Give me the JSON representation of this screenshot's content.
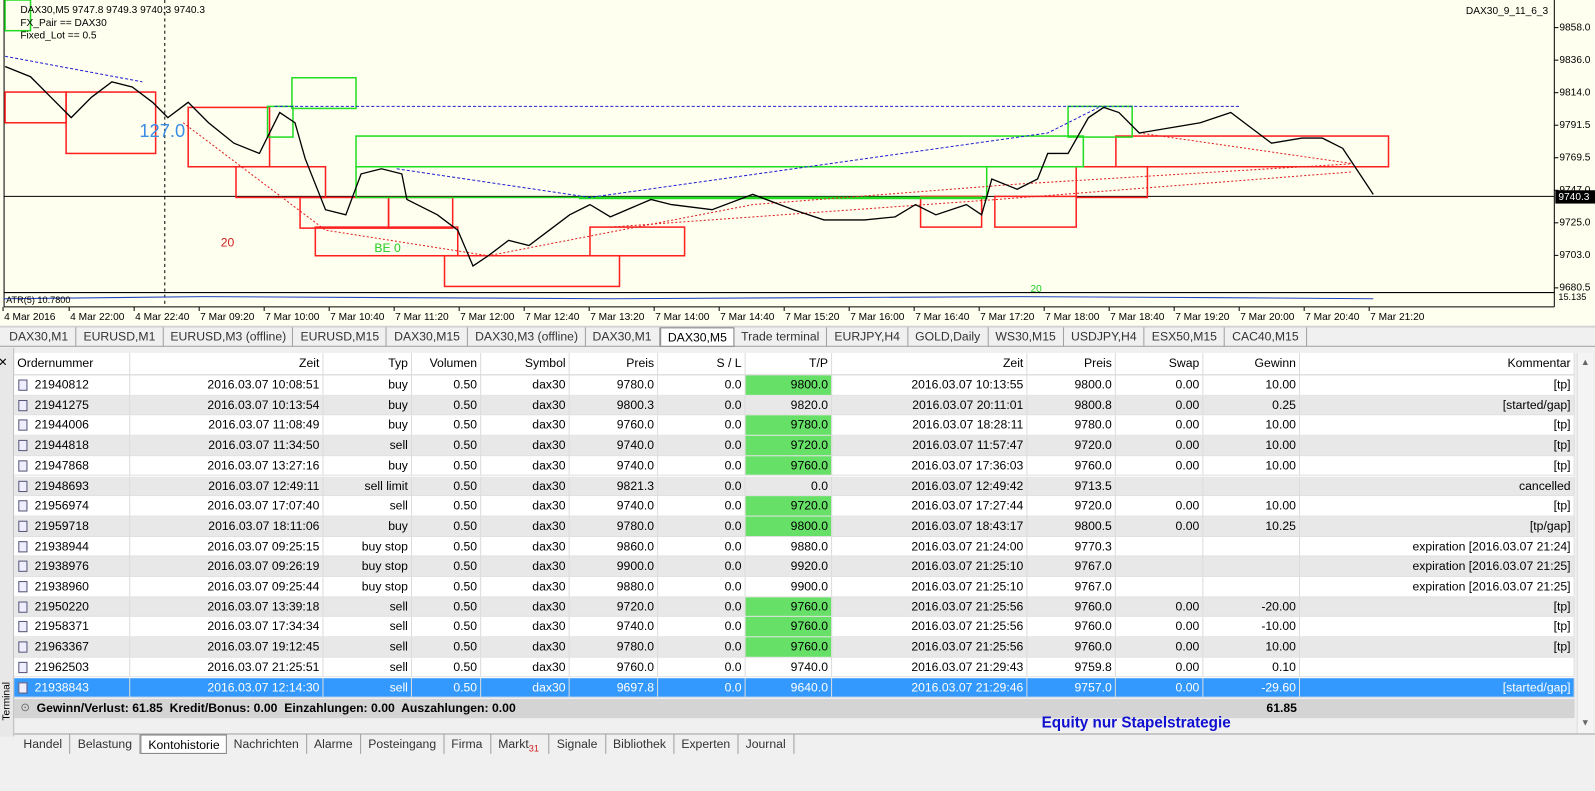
{
  "chart": {
    "header": {
      "symbol_line": "DAX30,M5  9747.8 9749.3 9740.3 9740.3",
      "params": [
        "FX_Pair  ==  DAX30",
        "Fixed_Lot  ==  0.5"
      ],
      "expert": "DAX30_9_11_6_3"
    },
    "annotations": [
      "127.0",
      "20",
      "BE 0",
      "20"
    ],
    "indicator": "ATR(5) 10.7800",
    "indicator_scale": "15.135",
    "price_labels": [
      "9858.0",
      "9836.0",
      "9814.0",
      "9791.5",
      "9769.5",
      "9747.0",
      "9725.0",
      "9703.0",
      "9680.5"
    ],
    "current_price": "9740.3",
    "time_labels": [
      "4 Mar 2016",
      "4 Mar 22:00",
      "4 Mar 22:40",
      "7 Mar 09:20",
      "7 Mar 10:00",
      "7 Mar 10:40",
      "7 Mar 11:20",
      "7 Mar 12:00",
      "7 Mar 12:40",
      "7 Mar 13:20",
      "7 Mar 14:00",
      "7 Mar 14:40",
      "7 Mar 15:20",
      "7 Mar 16:00",
      "7 Mar 16:40",
      "7 Mar 17:20",
      "7 Mar 18:00",
      "7 Mar 18:40",
      "7 Mar 19:20",
      "7 Mar 20:00",
      "7 Mar 20:40",
      "7 Mar 21:20"
    ]
  },
  "chart_tabs": {
    "items": [
      "DAX30,M1",
      "EURUSD,M1",
      "EURUSD,M3 (offline)",
      "EURUSD,M15",
      "DAX30,M15",
      "DAX30,M3 (offline)",
      "DAX30,M1",
      "DAX30,M5",
      "Trade terminal",
      "EURJPY,H4",
      "GOLD,Daily",
      "WS30,M15",
      "USDJPY,H4",
      "ESX50,M15",
      "CAC40,M15"
    ],
    "active": 7
  },
  "table": {
    "columns": [
      "Ordernummer",
      "Zeit",
      "Typ",
      "Volumen",
      "Symbol",
      "Preis",
      "S / L",
      "T/P",
      "Zeit",
      "Preis",
      "Swap",
      "Gewinn",
      "Kommentar"
    ],
    "tp_color": "#66e066",
    "selected": 15,
    "rows": [
      {
        "cells": [
          "21940812",
          "2016.03.07 10:08:51",
          "buy",
          "0.50",
          "dax30",
          "9780.0",
          "0.0",
          "9800.0",
          "2016.03.07 10:13:55",
          "9800.0",
          "0.00",
          "10.00",
          "[tp]"
        ],
        "tp_hit": true
      },
      {
        "cells": [
          "21941275",
          "2016.03.07 10:13:54",
          "buy",
          "0.50",
          "dax30",
          "9800.3",
          "0.0",
          "9820.0",
          "2016.03.07 20:11:01",
          "9800.8",
          "0.00",
          "0.25",
          "[started/gap]"
        ],
        "tp_hit": false
      },
      {
        "cells": [
          "21944006",
          "2016.03.07 11:08:49",
          "buy",
          "0.50",
          "dax30",
          "9760.0",
          "0.0",
          "9780.0",
          "2016.03.07 18:28:11",
          "9780.0",
          "0.00",
          "10.00",
          "[tp]"
        ],
        "tp_hit": true
      },
      {
        "cells": [
          "21944818",
          "2016.03.07 11:34:50",
          "sell",
          "0.50",
          "dax30",
          "9740.0",
          "0.0",
          "9720.0",
          "2016.03.07 11:57:47",
          "9720.0",
          "0.00",
          "10.00",
          "[tp]"
        ],
        "tp_hit": true
      },
      {
        "cells": [
          "21947868",
          "2016.03.07 13:27:16",
          "buy",
          "0.50",
          "dax30",
          "9740.0",
          "0.0",
          "9760.0",
          "2016.03.07 17:36:03",
          "9760.0",
          "0.00",
          "10.00",
          "[tp]"
        ],
        "tp_hit": true
      },
      {
        "cells": [
          "21948693",
          "2016.03.07 12:49:11",
          "sell limit",
          "0.50",
          "dax30",
          "9821.3",
          "0.0",
          "0.0",
          "2016.03.07 12:49:42",
          "9713.5",
          null,
          null,
          "cancelled"
        ],
        "tp_hit": false
      },
      {
        "cells": [
          "21956974",
          "2016.03.07 17:07:40",
          "sell",
          "0.50",
          "dax30",
          "9740.0",
          "0.0",
          "9720.0",
          "2016.03.07 17:27:44",
          "9720.0",
          "0.00",
          "10.00",
          "[tp]"
        ],
        "tp_hit": true
      },
      {
        "cells": [
          "21959718",
          "2016.03.07 18:11:06",
          "buy",
          "0.50",
          "dax30",
          "9780.0",
          "0.0",
          "9800.0",
          "2016.03.07 18:43:17",
          "9800.5",
          "0.00",
          "10.25",
          "[tp/gap]"
        ],
        "tp_hit": true
      },
      {
        "cells": [
          "21938944",
          "2016.03.07 09:25:15",
          "buy stop",
          "0.50",
          "dax30",
          "9860.0",
          "0.0",
          "9880.0",
          "2016.03.07 21:24:00",
          "9770.3",
          null,
          null,
          "expiration [2016.03.07 21:24]"
        ],
        "tp_hit": false
      },
      {
        "cells": [
          "21938976",
          "2016.03.07 09:26:19",
          "buy stop",
          "0.50",
          "dax30",
          "9900.0",
          "0.0",
          "9920.0",
          "2016.03.07 21:25:10",
          "9767.0",
          null,
          null,
          "expiration [2016.03.07 21:25]"
        ],
        "tp_hit": false
      },
      {
        "cells": [
          "21938960",
          "2016.03.07 09:25:44",
          "buy stop",
          "0.50",
          "dax30",
          "9880.0",
          "0.0",
          "9900.0",
          "2016.03.07 21:25:10",
          "9767.0",
          null,
          null,
          "expiration [2016.03.07 21:25]"
        ],
        "tp_hit": false
      },
      {
        "cells": [
          "21950220",
          "2016.03.07 13:39:18",
          "sell",
          "0.50",
          "dax30",
          "9720.0",
          "0.0",
          "9760.0",
          "2016.03.07 21:25:56",
          "9760.0",
          "0.00",
          "-20.00",
          "[tp]"
        ],
        "tp_hit": true
      },
      {
        "cells": [
          "21958371",
          "2016.03.07 17:34:34",
          "sell",
          "0.50",
          "dax30",
          "9740.0",
          "0.0",
          "9760.0",
          "2016.03.07 21:25:56",
          "9760.0",
          "0.00",
          "-10.00",
          "[tp]"
        ],
        "tp_hit": true
      },
      {
        "cells": [
          "21963367",
          "2016.03.07 19:12:45",
          "sell",
          "0.50",
          "dax30",
          "9780.0",
          "0.0",
          "9760.0",
          "2016.03.07 21:25:56",
          "9760.0",
          "0.00",
          "10.00",
          "[tp]"
        ],
        "tp_hit": true
      },
      {
        "cells": [
          "21962503",
          "2016.03.07 21:25:51",
          "sell",
          "0.50",
          "dax30",
          "9760.0",
          "0.0",
          "9740.0",
          "2016.03.07 21:29:43",
          "9759.8",
          "0.00",
          "0.10",
          null
        ],
        "tp_hit": false
      },
      {
        "cells": [
          "21938843",
          "2016.03.07 12:14:30",
          "sell",
          "0.50",
          "dax30",
          "9697.8",
          "0.0",
          "9640.0",
          "2016.03.07 21:29:46",
          "9757.0",
          "0.00",
          "-29.60",
          "[started/gap]"
        ],
        "tp_hit": false
      }
    ]
  },
  "footer": {
    "summary": "Gewinn/Verlust: 61.85  Kredit/Bonus: 0.00  Einzahlungen: 0.00  Auszahlungen: 0.00",
    "total": "61.85",
    "note": "Equity nur Stapelstrategie"
  },
  "terminal_tabs": {
    "items": [
      "Handel",
      "Belastung",
      "Kontohistorie",
      "Nachrichten",
      "Alarme",
      "Posteingang",
      "Firma",
      "Markt",
      "Signale",
      "Bibliothek",
      "Experten",
      "Journal"
    ],
    "active": 2,
    "badge": {
      "index": 7,
      "text": "31"
    }
  },
  "side_label": "Terminal"
}
